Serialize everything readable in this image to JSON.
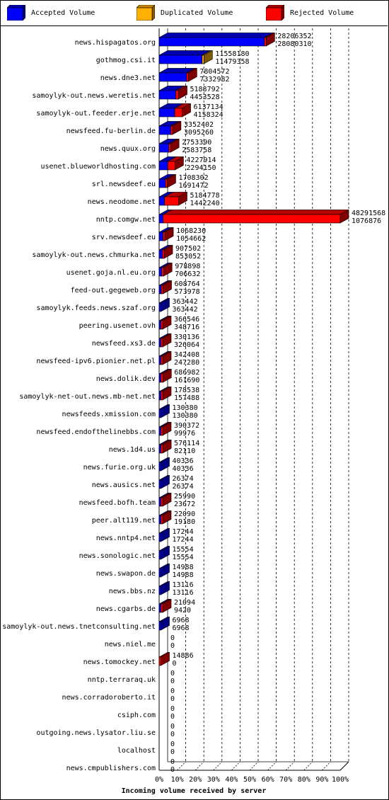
{
  "legend": [
    {
      "label": "Accepted Volume",
      "color": "#0000ff"
    },
    {
      "label": "Duplicated Volume",
      "color": "#ffb000"
    },
    {
      "label": "Rejected Volume",
      "color": "#ff0000"
    }
  ],
  "chart_data": {
    "type": "bar",
    "orientation": "horizontal",
    "stacked": true,
    "xlabel": "Incoming volume received by server",
    "xlim": [
      0,
      100
    ],
    "x_ticks": [
      "0%",
      "10%",
      "20%",
      "30%",
      "40%",
      "50%",
      "60%",
      "70%",
      "80%",
      "90%",
      "100%"
    ],
    "grid": true,
    "legend_position": "top",
    "max_total": 48291568,
    "rows": [
      {
        "server": "news.hispagatos.org",
        "total": 28206352,
        "accepted": 28080310,
        "duplicated": 0,
        "rejected": 126042
      },
      {
        "server": "gothmog.csi.it",
        "total": 11558180,
        "accepted": 11479358,
        "duplicated": 78822,
        "rejected": 0
      },
      {
        "server": "news.dne3.net",
        "total": 7804572,
        "accepted": 7332982,
        "duplicated": 0,
        "rejected": 471590
      },
      {
        "server": "samoylyk-out.news.weretis.net",
        "total": 5188792,
        "accepted": 4453528,
        "duplicated": 0,
        "rejected": 735264
      },
      {
        "server": "samoylyk-out.feeder.erje.net",
        "total": 6137134,
        "accepted": 4158324,
        "duplicated": 0,
        "rejected": 1978810
      },
      {
        "server": "newsfeed.fu-berlin.de",
        "total": 3352402,
        "accepted": 3095260,
        "duplicated": 0,
        "rejected": 257142
      },
      {
        "server": "news.quux.org",
        "total": 2753390,
        "accepted": 2583758,
        "duplicated": 0,
        "rejected": 169632
      },
      {
        "server": "usenet.blueworldhosting.com",
        "total": 4227914,
        "accepted": 2294150,
        "duplicated": 0,
        "rejected": 1933764
      },
      {
        "server": "srl.newsdeef.eu",
        "total": 1708302,
        "accepted": 1691472,
        "duplicated": 0,
        "rejected": 16830
      },
      {
        "server": "news.neodome.net",
        "total": 5184778,
        "accepted": 1442240,
        "duplicated": 0,
        "rejected": 3742538
      },
      {
        "server": "nntp.comgw.net",
        "total": 48291568,
        "accepted": 1076876,
        "duplicated": 0,
        "rejected": 47214692
      },
      {
        "server": "srv.newsdeef.eu",
        "total": 1068230,
        "accepted": 1054662,
        "duplicated": 0,
        "rejected": 13568
      },
      {
        "server": "samoylyk-out.news.chmurka.net",
        "total": 907502,
        "accepted": 853052,
        "duplicated": 0,
        "rejected": 54450
      },
      {
        "server": "usenet.goja.nl.eu.org",
        "total": 978898,
        "accepted": 706632,
        "duplicated": 0,
        "rejected": 272266
      },
      {
        "server": "feed-out.gegeweb.org",
        "total": 608764,
        "accepted": 573978,
        "duplicated": 0,
        "rejected": 34786
      },
      {
        "server": "samoylyk.feeds.news.szaf.org",
        "total": 363442,
        "accepted": 363442,
        "duplicated": 0,
        "rejected": 0
      },
      {
        "server": "peering.usenet.ovh",
        "total": 366546,
        "accepted": 348716,
        "duplicated": 0,
        "rejected": 17830
      },
      {
        "server": "newsfeed.xs3.de",
        "total": 330136,
        "accepted": 326064,
        "duplicated": 0,
        "rejected": 4072
      },
      {
        "server": "newsfeed-ipv6.pionier.net.pl",
        "total": 342408,
        "accepted": 247280,
        "duplicated": 0,
        "rejected": 95128
      },
      {
        "server": "news.dolik.dev",
        "total": 686982,
        "accepted": 161690,
        "duplicated": 0,
        "rejected": 525292
      },
      {
        "server": "samoylyk-net-out.news.mb-net.net",
        "total": 178538,
        "accepted": 157488,
        "duplicated": 0,
        "rejected": 21050
      },
      {
        "server": "newsfeeds.xmission.com",
        "total": 130380,
        "accepted": 130380,
        "duplicated": 0,
        "rejected": 0
      },
      {
        "server": "newsfeed.endofthelinebbs.com",
        "total": 390372,
        "accepted": 99976,
        "duplicated": 0,
        "rejected": 290396
      },
      {
        "server": "news.1d4.us",
        "total": 576114,
        "accepted": 82110,
        "duplicated": 0,
        "rejected": 494004
      },
      {
        "server": "news.furie.org.uk",
        "total": 40336,
        "accepted": 40336,
        "duplicated": 0,
        "rejected": 0
      },
      {
        "server": "news.ausics.net",
        "total": 26374,
        "accepted": 26374,
        "duplicated": 0,
        "rejected": 0
      },
      {
        "server": "newsfeed.bofh.team",
        "total": 25990,
        "accepted": 23672,
        "duplicated": 0,
        "rejected": 2318
      },
      {
        "server": "peer.alt119.net",
        "total": 22090,
        "accepted": 19180,
        "duplicated": 0,
        "rejected": 2910
      },
      {
        "server": "news.nntp4.net",
        "total": 17244,
        "accepted": 17244,
        "duplicated": 0,
        "rejected": 0
      },
      {
        "server": "news.sonologic.net",
        "total": 15554,
        "accepted": 15554,
        "duplicated": 0,
        "rejected": 0
      },
      {
        "server": "news.swapon.de",
        "total": 14988,
        "accepted": 14988,
        "duplicated": 0,
        "rejected": 0
      },
      {
        "server": "news.bbs.nz",
        "total": 13116,
        "accepted": 13116,
        "duplicated": 0,
        "rejected": 0
      },
      {
        "server": "news.cgarbs.de",
        "total": 21094,
        "accepted": 9420,
        "duplicated": 0,
        "rejected": 11674
      },
      {
        "server": "samoylyk-out.news.tnetconsulting.net",
        "total": 6968,
        "accepted": 6968,
        "duplicated": 0,
        "rejected": 0
      },
      {
        "server": "news.niel.me",
        "total": 0,
        "accepted": 0,
        "duplicated": 0,
        "rejected": 0
      },
      {
        "server": "news.tomockey.net",
        "total": 14886,
        "accepted": 0,
        "duplicated": 0,
        "rejected": 14886
      },
      {
        "server": "nntp.terraraq.uk",
        "total": 0,
        "accepted": 0,
        "duplicated": 0,
        "rejected": 0
      },
      {
        "server": "news.corradoroberto.it",
        "total": 0,
        "accepted": 0,
        "duplicated": 0,
        "rejected": 0
      },
      {
        "server": "csiph.com",
        "total": 0,
        "accepted": 0,
        "duplicated": 0,
        "rejected": 0
      },
      {
        "server": "outgoing.news.lysator.liu.se",
        "total": 0,
        "accepted": 0,
        "duplicated": 0,
        "rejected": 0
      },
      {
        "server": "localhost",
        "total": 0,
        "accepted": 0,
        "duplicated": 0,
        "rejected": 0
      },
      {
        "server": "news.cmpublishers.com",
        "total": 0,
        "accepted": 0,
        "duplicated": 0,
        "rejected": 0
      }
    ]
  }
}
